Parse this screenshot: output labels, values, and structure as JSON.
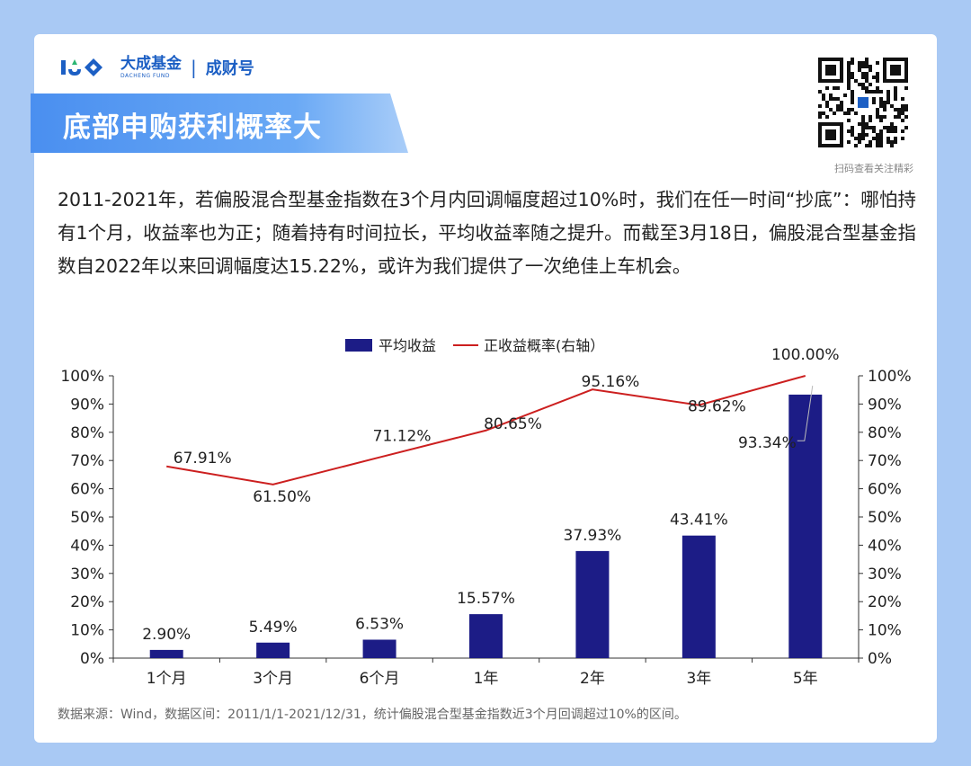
{
  "brand": {
    "name": "大成基金",
    "name_en": "DACHENG FUND",
    "separator": "|",
    "sub": "成财号"
  },
  "headline": "底部申购获利概率大",
  "qr_caption": "扫码查看关注精彩",
  "body_text": "2011-2021年，若偏股混合型基金指数在3个月内回调幅度超过10%时，我们在任一时间“抄底”：哪怕持有1个月，收益率也为正；随着持有时间拉长，平均收益率随之提升。而截至3月18日，偏股混合型基金指数自2022年以来回调幅度达15.22%，或许为我们提供了一次绝佳上车机会。",
  "source_note": "数据来源：Wind，数据区间：2011/1/1-2021/12/31，统计偏股混合型基金指数近3个月回调超过10%的区间。",
  "colors": {
    "bar": "#1c1c86",
    "line": "#cc1f1f",
    "accent": "#1c5fc4",
    "ribbon": "#5a9ef2"
  },
  "chart_data": {
    "type": "bar",
    "categories": [
      "1个月",
      "3个月",
      "6个月",
      "1年",
      "2年",
      "3年",
      "5年"
    ],
    "series": [
      {
        "name": "平均收益",
        "type": "bar",
        "axis": "left",
        "values": [
          2.9,
          5.49,
          6.53,
          15.57,
          37.93,
          43.41,
          93.34
        ],
        "labels": [
          "2.90%",
          "5.49%",
          "6.53%",
          "15.57%",
          "37.93%",
          "43.41%",
          "93.34%"
        ]
      },
      {
        "name": "正收益概率(右轴）",
        "type": "line",
        "axis": "right",
        "values": [
          67.91,
          61.5,
          71.12,
          80.65,
          95.16,
          89.62,
          100.0
        ],
        "labels": [
          "67.91%",
          "61.50%",
          "71.12%",
          "80.65%",
          "95.16%",
          "89.62%",
          "100.00%"
        ]
      }
    ],
    "y_left": {
      "min": 0,
      "max": 100,
      "step": 10,
      "ticks": [
        "0%",
        "10%",
        "20%",
        "30%",
        "40%",
        "50%",
        "60%",
        "70%",
        "80%",
        "90%",
        "100%"
      ]
    },
    "y_right": {
      "min": 0,
      "max": 100,
      "step": 10,
      "ticks": [
        "0%",
        "10%",
        "20%",
        "30%",
        "40%",
        "50%",
        "60%",
        "70%",
        "80%",
        "90%",
        "100%"
      ]
    },
    "legend_position": "top-center",
    "grid": false
  }
}
